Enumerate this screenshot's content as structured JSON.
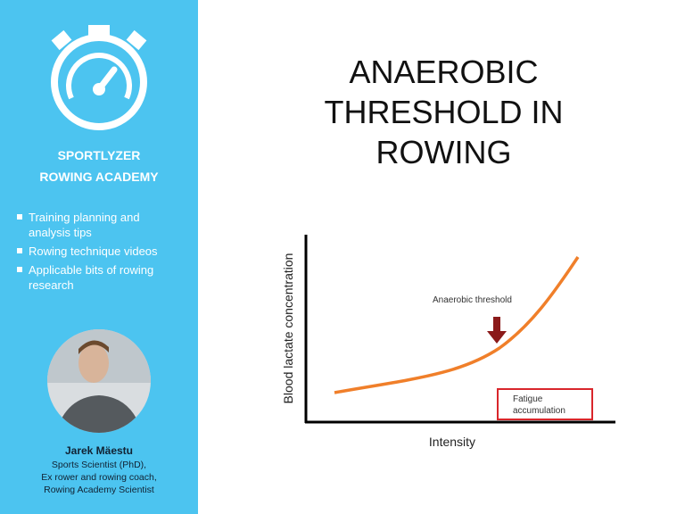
{
  "sidebar": {
    "brand": [
      "SPORTLYZER",
      "ROWING ACADEMY"
    ],
    "bullets": [
      "Training planning and analysis tips",
      "Rowing technique videos",
      "Applicable bits of rowing research"
    ],
    "author": {
      "name": "Jarek Mäestu",
      "roles": [
        "Sports Scientist (PhD),",
        "Ex rower and rowing coach,",
        "Rowing Academy Scientist"
      ]
    }
  },
  "slide": {
    "title": [
      "ANAEROBIC",
      "THRESHOLD IN",
      "ROWING"
    ]
  },
  "diagram": {
    "y_label": "Blood lactate concentration",
    "x_label": "Intensity",
    "threshold_label": "Anaerobic threshold",
    "fatigue_label": [
      "Fatigue",
      "accumulation"
    ]
  }
}
